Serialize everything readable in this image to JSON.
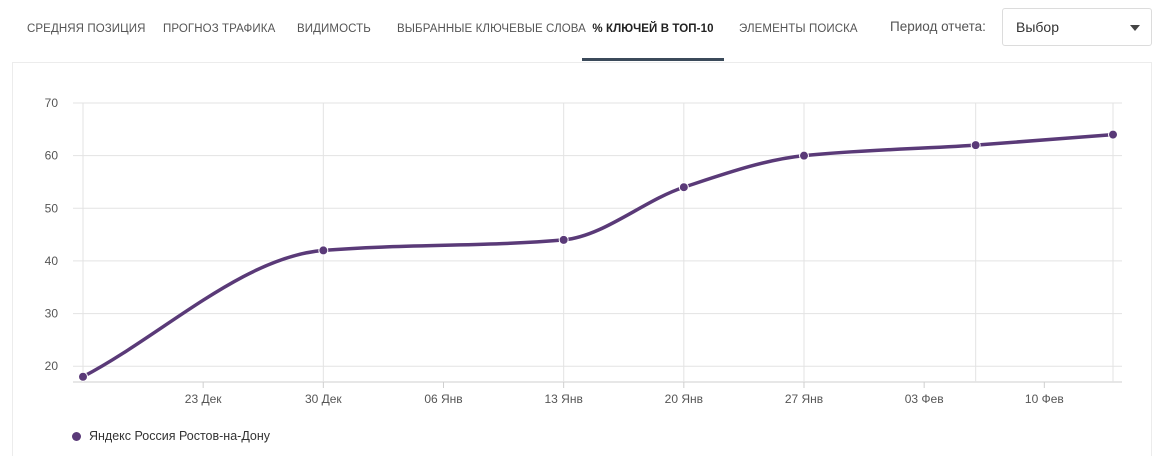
{
  "tabs": [
    {
      "label": "Средняя позиция",
      "active": false
    },
    {
      "label": "Прогноз трафика",
      "active": false
    },
    {
      "label": "Видимость",
      "active": false
    },
    {
      "label": "Выбранные ключевые слова",
      "active": false
    },
    {
      "label": "% ключей в ТОП-10",
      "active": true
    },
    {
      "label": "Элементы поиска",
      "active": false
    }
  ],
  "period": {
    "label": "Период отчета:",
    "value": "Выбор"
  },
  "colors": {
    "series": "#5a3a78",
    "grid": "#e3e3e3",
    "axis_text": "#555555"
  },
  "chart_data": {
    "type": "line",
    "title": "",
    "xlabel": "",
    "ylabel": "",
    "ylim": [
      17,
      70
    ],
    "y_ticks": [
      20,
      30,
      40,
      50,
      60,
      70
    ],
    "x_range": [
      "2023-12-16",
      "2024-02-14"
    ],
    "x_ticks": [
      {
        "date": "2023-12-23",
        "label": "23 Дек"
      },
      {
        "date": "2023-12-30",
        "label": "30 Дек"
      },
      {
        "date": "2024-01-06",
        "label": "06 Янв"
      },
      {
        "date": "2024-01-13",
        "label": "13 Янв"
      },
      {
        "date": "2024-01-20",
        "label": "20 Янв"
      },
      {
        "date": "2024-01-27",
        "label": "27 Янв"
      },
      {
        "date": "2024-02-03",
        "label": "03 Фев"
      },
      {
        "date": "2024-02-10",
        "label": "10 Фев"
      }
    ],
    "vertical_gridlines": [
      "2023-12-16",
      "2023-12-30",
      "2024-01-13",
      "2024-01-20",
      "2024-01-27",
      "2024-02-06",
      "2024-02-14"
    ],
    "grid": true,
    "legend_position": "bottom-left",
    "series": [
      {
        "name": "Яндекс Россия Ростов-на-Дону",
        "points": [
          {
            "x": "2023-12-16",
            "y": 18
          },
          {
            "x": "2023-12-30",
            "y": 42
          },
          {
            "x": "2024-01-13",
            "y": 44
          },
          {
            "x": "2024-01-20",
            "y": 54
          },
          {
            "x": "2024-01-27",
            "y": 60
          },
          {
            "x": "2024-02-06",
            "y": 62
          },
          {
            "x": "2024-02-14",
            "y": 64
          }
        ]
      }
    ]
  }
}
